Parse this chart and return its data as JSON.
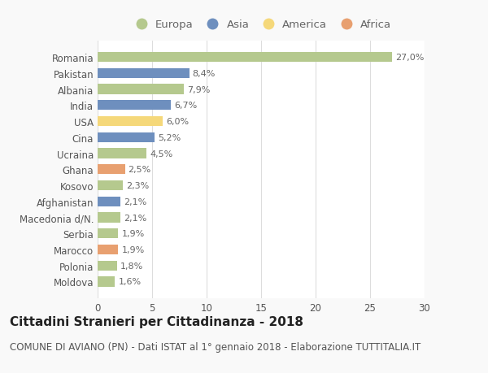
{
  "countries": [
    "Romania",
    "Pakistan",
    "Albania",
    "India",
    "USA",
    "Cina",
    "Ucraina",
    "Ghana",
    "Kosovo",
    "Afghanistan",
    "Macedonia d/N.",
    "Serbia",
    "Marocco",
    "Polonia",
    "Moldova"
  ],
  "values": [
    27.0,
    8.4,
    7.9,
    6.7,
    6.0,
    5.2,
    4.5,
    2.5,
    2.3,
    2.1,
    2.1,
    1.9,
    1.9,
    1.8,
    1.6
  ],
  "labels": [
    "27,0%",
    "8,4%",
    "7,9%",
    "6,7%",
    "6,0%",
    "5,2%",
    "4,5%",
    "2,5%",
    "2,3%",
    "2,1%",
    "2,1%",
    "1,9%",
    "1,9%",
    "1,8%",
    "1,6%"
  ],
  "continents": [
    "Europa",
    "Asia",
    "Europa",
    "Asia",
    "America",
    "Asia",
    "Europa",
    "Africa",
    "Europa",
    "Asia",
    "Europa",
    "Europa",
    "Africa",
    "Europa",
    "Europa"
  ],
  "continent_colors": {
    "Europa": "#b5c98e",
    "Asia": "#6e8fbe",
    "America": "#f5d87a",
    "Africa": "#e8a070"
  },
  "legend_order": [
    "Europa",
    "Asia",
    "America",
    "Africa"
  ],
  "title": "Cittadini Stranieri per Cittadinanza - 2018",
  "subtitle": "COMUNE DI AVIANO (PN) - Dati ISTAT al 1° gennaio 2018 - Elaborazione TUTTITALIA.IT",
  "xlim": [
    0,
    30
  ],
  "xticks": [
    0,
    5,
    10,
    15,
    20,
    25,
    30
  ],
  "background_color": "#f9f9f9",
  "plot_bg_color": "#ffffff",
  "grid_color": "#dddddd",
  "bar_height": 0.62,
  "title_fontsize": 11,
  "subtitle_fontsize": 8.5,
  "label_fontsize": 8,
  "tick_fontsize": 8.5,
  "legend_fontsize": 9.5
}
